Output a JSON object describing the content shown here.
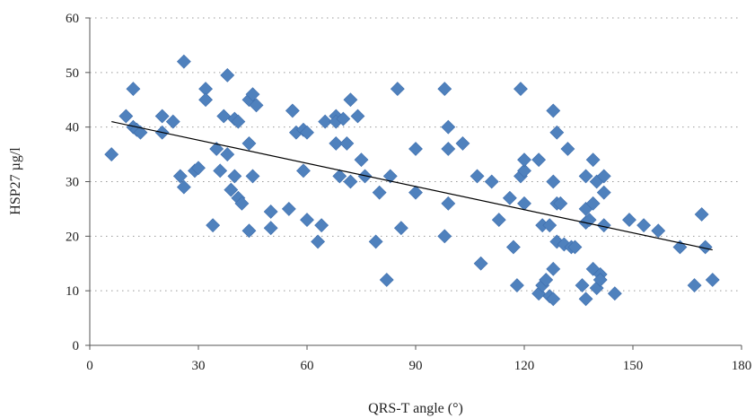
{
  "chart_data": {
    "type": "scatter",
    "title": "",
    "xlabel": "QRS-T angle (°)",
    "ylabel": "HSP27 µg/l",
    "xlim": [
      0,
      180
    ],
    "ylim": [
      0,
      60
    ],
    "xticks": [
      "0",
      "30",
      "60",
      "90",
      "120",
      "150",
      "180"
    ],
    "yticks": [
      "0",
      "10",
      "20",
      "30",
      "40",
      "50",
      "60"
    ],
    "grid": "horizontal dotted",
    "legend": "none",
    "marker": "diamond",
    "colors": {
      "marker": "#4f81bd",
      "marker_edge": "#3f6fae",
      "trend": "#000000"
    },
    "trendline": {
      "x": [
        6,
        172
      ],
      "y": [
        41,
        17.5
      ]
    },
    "points": [
      [
        6,
        35
      ],
      [
        10,
        42
      ],
      [
        12,
        47
      ],
      [
        12,
        40
      ],
      [
        13,
        39.5
      ],
      [
        14,
        39
      ],
      [
        20,
        42
      ],
      [
        20,
        39
      ],
      [
        23,
        41
      ],
      [
        25,
        31
      ],
      [
        26,
        52
      ],
      [
        26,
        29
      ],
      [
        29,
        32
      ],
      [
        30,
        32.5
      ],
      [
        32,
        47
      ],
      [
        32,
        45
      ],
      [
        34,
        22
      ],
      [
        35,
        36
      ],
      [
        36,
        32
      ],
      [
        37,
        42
      ],
      [
        38,
        49.5
      ],
      [
        38,
        35
      ],
      [
        39,
        28.5
      ],
      [
        40,
        41.5
      ],
      [
        40,
        31
      ],
      [
        41,
        27
      ],
      [
        41,
        41
      ],
      [
        42,
        26
      ],
      [
        44,
        37
      ],
      [
        44,
        21
      ],
      [
        44,
        45
      ],
      [
        45,
        46
      ],
      [
        45,
        31
      ],
      [
        46,
        44
      ],
      [
        50,
        24.5
      ],
      [
        50,
        21.5
      ],
      [
        55,
        25
      ],
      [
        56,
        43
      ],
      [
        57,
        39
      ],
      [
        59,
        39.5
      ],
      [
        59,
        32
      ],
      [
        60,
        39
      ],
      [
        60,
        23
      ],
      [
        63,
        19
      ],
      [
        64,
        22
      ],
      [
        65,
        41
      ],
      [
        68,
        42
      ],
      [
        68,
        41
      ],
      [
        68,
        37
      ],
      [
        69,
        31
      ],
      [
        70,
        41.5
      ],
      [
        71,
        37
      ],
      [
        72,
        45
      ],
      [
        72,
        30
      ],
      [
        74,
        42
      ],
      [
        75,
        34
      ],
      [
        76,
        31
      ],
      [
        79,
        19
      ],
      [
        80,
        28
      ],
      [
        82,
        12
      ],
      [
        83,
        31
      ],
      [
        85,
        47
      ],
      [
        86,
        21.5
      ],
      [
        90,
        36
      ],
      [
        90,
        28
      ],
      [
        98,
        47
      ],
      [
        98,
        20
      ],
      [
        99,
        40
      ],
      [
        99,
        36
      ],
      [
        99,
        26
      ],
      [
        103,
        37
      ],
      [
        107,
        31
      ],
      [
        108,
        15
      ],
      [
        111,
        30
      ],
      [
        113,
        23
      ],
      [
        116,
        27
      ],
      [
        117,
        18
      ],
      [
        118,
        11
      ],
      [
        119,
        47
      ],
      [
        119,
        31
      ],
      [
        120,
        32
      ],
      [
        120,
        34
      ],
      [
        120,
        26
      ],
      [
        124,
        34
      ],
      [
        124,
        9.5
      ],
      [
        125,
        22
      ],
      [
        125,
        11
      ],
      [
        126,
        12
      ],
      [
        127,
        22
      ],
      [
        127,
        9
      ],
      [
        128,
        8.5
      ],
      [
        128,
        43
      ],
      [
        128,
        30
      ],
      [
        128,
        14
      ],
      [
        129,
        39
      ],
      [
        129,
        26
      ],
      [
        129,
        19
      ],
      [
        130,
        26
      ],
      [
        131,
        18.5
      ],
      [
        132,
        36
      ],
      [
        133,
        18
      ],
      [
        134,
        18
      ],
      [
        136,
        11
      ],
      [
        137,
        31
      ],
      [
        137,
        25
      ],
      [
        137,
        22.5
      ],
      [
        137,
        8.5
      ],
      [
        138,
        23
      ],
      [
        139,
        26
      ],
      [
        139,
        34
      ],
      [
        139,
        14
      ],
      [
        140,
        30
      ],
      [
        140,
        10.5
      ],
      [
        141,
        13
      ],
      [
        141,
        12
      ],
      [
        142,
        28
      ],
      [
        142,
        22
      ],
      [
        142,
        31
      ],
      [
        145,
        9.5
      ],
      [
        149,
        23
      ],
      [
        153,
        22
      ],
      [
        157,
        21
      ],
      [
        163,
        18
      ],
      [
        167,
        11
      ],
      [
        169,
        24
      ],
      [
        170,
        18
      ],
      [
        172,
        12
      ]
    ]
  }
}
